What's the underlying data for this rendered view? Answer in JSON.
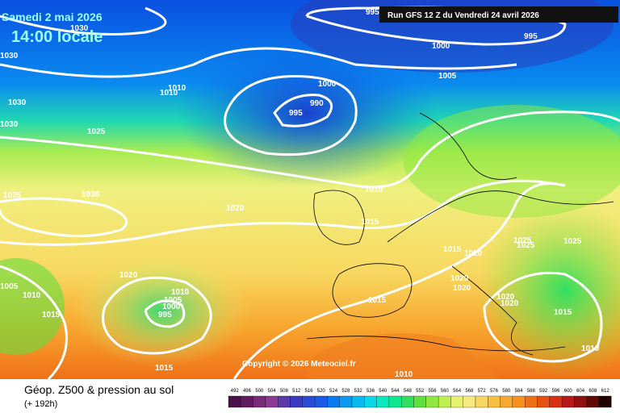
{
  "header": {
    "date": "Samedi 2 mai 2026",
    "time": "14:00 locale",
    "run": "Run GFS 12 Z du Vendredi 24 avril 2026"
  },
  "copyright": "Copyright © 2026 Meteociel.fr",
  "isobar_labels": [
    "995",
    "1030",
    "1030",
    "995",
    "1000",
    "1005",
    "1000",
    "990",
    "995",
    "1010",
    "1010",
    "1030",
    "1030",
    "1025",
    "1025",
    "1030",
    "1020",
    "1010",
    "1015",
    "1015",
    "1020",
    "1025",
    "1025",
    "1025",
    "1020",
    "1020",
    "1020",
    "1020",
    "1015",
    "1010",
    "1005",
    "1010",
    "1015",
    "1020",
    "1010",
    "1005",
    "1000",
    "995",
    "1015",
    "1015",
    "1010"
  ],
  "footer": {
    "title": "Géop. Z500 & pression au sol",
    "subtitle": "(+ 192h)"
  },
  "legend": {
    "labels": [
      "492",
      "496",
      "500",
      "504",
      "508",
      "512",
      "516",
      "520",
      "524",
      "528",
      "532",
      "536",
      "540",
      "544",
      "548",
      "552",
      "556",
      "560",
      "564",
      "568",
      "572",
      "576",
      "580",
      "584",
      "588",
      "592",
      "596",
      "600",
      "604",
      "608",
      "612"
    ],
    "colors": [
      "#4b1048",
      "#621a5e",
      "#7a2a78",
      "#8a3a90",
      "#5a3aa8",
      "#3a3ac0",
      "#2a4ad8",
      "#1a5ae8",
      "#0a7af0",
      "#0a9af0",
      "#0abaf0",
      "#0ad8e8",
      "#0ae8c0",
      "#10e890",
      "#30e060",
      "#60e040",
      "#90e840",
      "#c0f050",
      "#e8f070",
      "#f8e880",
      "#f8d860",
      "#f8c040",
      "#f8a830",
      "#f89020",
      "#f07018",
      "#e85010",
      "#d83010",
      "#b81818",
      "#901010",
      "#600808",
      "#200000"
    ]
  }
}
